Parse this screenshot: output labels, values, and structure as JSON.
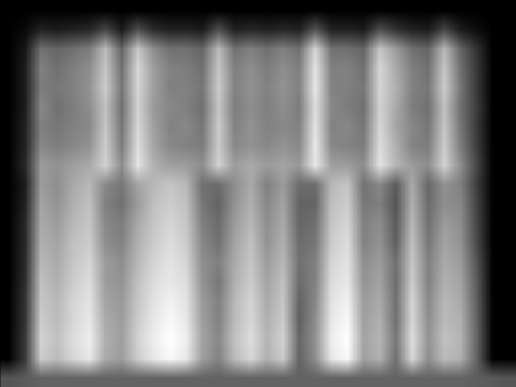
{
  "chart_data": {
    "type": "heatmap",
    "tick_labels": false,
    "values": [
      [
        0,
        0,
        0,
        0,
        0,
        0,
        0,
        0,
        0,
        0,
        0,
        0,
        0,
        0,
        0,
        0,
        0,
        0,
        0,
        0,
        0,
        0,
        0,
        0,
        0,
        0,
        0,
        0,
        0,
        0,
        0,
        0
      ],
      [
        0,
        3,
        12,
        10,
        12,
        14,
        25,
        10,
        28,
        15,
        12,
        12,
        10,
        28,
        12,
        14,
        12,
        14,
        12,
        30,
        12,
        12,
        10,
        28,
        18,
        12,
        10,
        25,
        10,
        5,
        0,
        0
      ],
      [
        0,
        8,
        40,
        36,
        40,
        44,
        66,
        36,
        70,
        50,
        40,
        40,
        36,
        66,
        40,
        45,
        40,
        45,
        40,
        75,
        40,
        40,
        36,
        70,
        55,
        40,
        36,
        65,
        36,
        18,
        0,
        0
      ],
      [
        0,
        10,
        46,
        40,
        45,
        50,
        70,
        40,
        76,
        55,
        46,
        44,
        40,
        70,
        45,
        50,
        44,
        50,
        45,
        80,
        45,
        46,
        40,
        76,
        60,
        45,
        40,
        70,
        40,
        20,
        0,
        0
      ],
      [
        0,
        10,
        44,
        42,
        46,
        52,
        72,
        42,
        75,
        56,
        45,
        46,
        42,
        72,
        46,
        52,
        46,
        52,
        46,
        82,
        46,
        45,
        42,
        75,
        62,
        46,
        42,
        72,
        42,
        20,
        0,
        0
      ],
      [
        0,
        10,
        48,
        40,
        44,
        50,
        68,
        40,
        74,
        54,
        48,
        45,
        40,
        70,
        44,
        50,
        45,
        50,
        44,
        78,
        48,
        44,
        40,
        74,
        60,
        44,
        40,
        68,
        40,
        22,
        0,
        0
      ],
      [
        0,
        12,
        45,
        42,
        46,
        48,
        70,
        42,
        76,
        56,
        46,
        48,
        42,
        72,
        46,
        52,
        46,
        48,
        46,
        80,
        46,
        48,
        42,
        76,
        58,
        48,
        42,
        70,
        42,
        20,
        0,
        0
      ],
      [
        0,
        12,
        48,
        44,
        48,
        52,
        72,
        44,
        78,
        58,
        48,
        46,
        44,
        72,
        48,
        52,
        48,
        52,
        48,
        82,
        48,
        46,
        44,
        78,
        62,
        46,
        44,
        72,
        44,
        22,
        0,
        0
      ],
      [
        0,
        14,
        55,
        52,
        56,
        60,
        74,
        50,
        80,
        62,
        56,
        55,
        50,
        74,
        55,
        60,
        55,
        58,
        54,
        82,
        56,
        55,
        50,
        80,
        64,
        55,
        50,
        74,
        50,
        25,
        0,
        0
      ],
      [
        0,
        10,
        55,
        50,
        60,
        65,
        48,
        42,
        58,
        65,
        70,
        65,
        40,
        38,
        50,
        60,
        45,
        55,
        38,
        38,
        65,
        70,
        40,
        48,
        32,
        60,
        36,
        52,
        45,
        22,
        0,
        0
      ],
      [
        0,
        12,
        58,
        52,
        62,
        68,
        45,
        40,
        55,
        68,
        72,
        68,
        42,
        35,
        52,
        62,
        48,
        58,
        35,
        36,
        68,
        72,
        42,
        45,
        30,
        62,
        38,
        50,
        48,
        24,
        0,
        0
      ],
      [
        0,
        14,
        60,
        55,
        65,
        70,
        48,
        44,
        60,
        70,
        75,
        70,
        45,
        38,
        55,
        65,
        50,
        60,
        36,
        40,
        70,
        75,
        45,
        50,
        32,
        65,
        40,
        55,
        50,
        25,
        0,
        0
      ],
      [
        0,
        14,
        62,
        58,
        68,
        72,
        50,
        46,
        62,
        72,
        78,
        72,
        48,
        40,
        58,
        68,
        52,
        62,
        38,
        42,
        72,
        78,
        46,
        52,
        34,
        68,
        42,
        58,
        52,
        26,
        0,
        0
      ],
      [
        0,
        15,
        65,
        60,
        70,
        75,
        55,
        50,
        65,
        75,
        80,
        75,
        50,
        45,
        60,
        70,
        55,
        65,
        40,
        45,
        75,
        80,
        50,
        55,
        40,
        70,
        45,
        60,
        55,
        30,
        0,
        0
      ],
      [
        0,
        16,
        68,
        62,
        72,
        78,
        55,
        52,
        68,
        78,
        82,
        78,
        52,
        42,
        62,
        72,
        58,
        68,
        38,
        46,
        78,
        82,
        52,
        58,
        38,
        72,
        46,
        62,
        58,
        32,
        0,
        0
      ],
      [
        0,
        18,
        70,
        65,
        75,
        80,
        58,
        54,
        70,
        80,
        85,
        80,
        55,
        45,
        65,
        75,
        60,
        70,
        35,
        48,
        80,
        85,
        55,
        60,
        40,
        75,
        48,
        65,
        60,
        34,
        0,
        0
      ],
      [
        0,
        18,
        72,
        66,
        76,
        82,
        60,
        55,
        72,
        82,
        88,
        82,
        56,
        46,
        66,
        76,
        62,
        72,
        34,
        50,
        82,
        88,
        56,
        62,
        40,
        76,
        50,
        66,
        62,
        35,
        0,
        0
      ],
      [
        0,
        20,
        74,
        68,
        78,
        84,
        62,
        56,
        74,
        84,
        90,
        84,
        58,
        48,
        68,
        78,
        64,
        74,
        36,
        52,
        84,
        90,
        58,
        64,
        42,
        78,
        52,
        68,
        64,
        36,
        0,
        0
      ],
      [
        0,
        20,
        72,
        66,
        76,
        82,
        60,
        55,
        72,
        82,
        88,
        82,
        56,
        46,
        66,
        76,
        62,
        72,
        35,
        50,
        82,
        88,
        56,
        62,
        40,
        76,
        50,
        66,
        62,
        35,
        0,
        0
      ],
      [
        30,
        32,
        35,
        35,
        35,
        35,
        35,
        35,
        35,
        35,
        35,
        35,
        35,
        35,
        35,
        35,
        35,
        35,
        35,
        35,
        35,
        35,
        35,
        35,
        35,
        35,
        35,
        35,
        35,
        33,
        32,
        30
      ]
    ]
  }
}
